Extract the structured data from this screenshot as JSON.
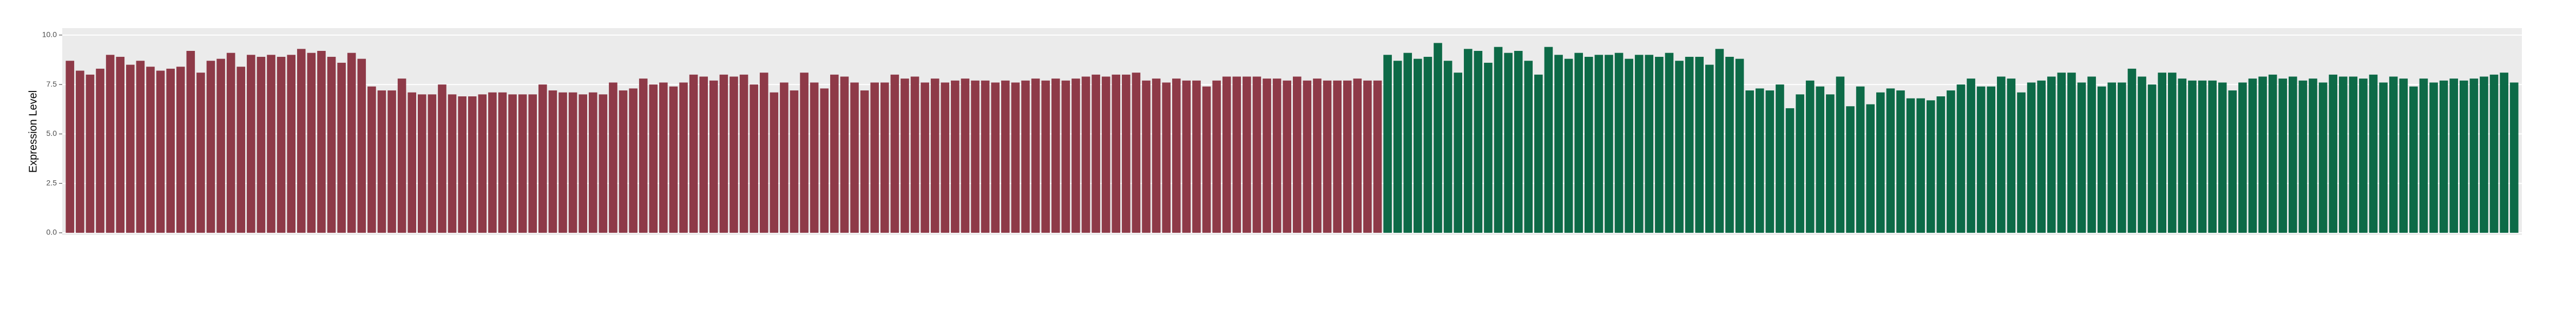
{
  "chart_data": {
    "type": "bar",
    "y_label": "Expression Level",
    "ylim": [
      0,
      10.35
    ],
    "yticks": [
      {
        "value": 0,
        "label": "0.0"
      },
      {
        "value": 2.5,
        "label": "2.5"
      },
      {
        "value": 5,
        "label": "5.0"
      },
      {
        "value": 7.5,
        "label": "7.5"
      },
      {
        "value": 10,
        "label": "10.0"
      }
    ],
    "grid": true,
    "series": [
      {
        "color": "#8e3a48",
        "values": [
          8.7,
          8.2,
          8.0,
          8.3,
          9.0,
          8.9,
          8.5,
          8.7,
          8.4,
          8.2,
          8.3,
          8.4,
          9.2,
          8.1,
          8.7,
          8.8,
          9.1,
          8.4,
          9.0,
          8.9,
          9.0,
          8.9,
          9.0,
          9.3,
          9.1,
          9.2,
          8.9,
          8.6,
          9.1,
          8.8,
          7.4,
          7.2,
          7.2,
          7.8,
          7.1,
          7.0,
          7.0,
          7.5,
          7.0,
          6.9,
          6.9,
          7.0,
          7.1,
          7.1,
          7.0,
          7.0,
          7.0,
          7.5,
          7.2,
          7.1,
          7.1,
          7.0,
          7.1,
          7.0,
          7.6,
          7.2,
          7.3,
          7.8,
          7.5,
          7.6,
          7.4,
          7.6,
          8.0,
          7.9,
          7.7,
          8.0,
          7.9,
          8.0,
          7.5,
          8.1,
          7.1,
          7.6,
          7.2,
          8.1,
          7.6,
          7.3,
          8.0,
          7.9,
          7.6,
          7.2,
          7.6,
          7.6,
          8.0,
          7.8,
          7.9,
          7.6,
          7.8,
          7.6,
          7.7,
          7.8,
          7.7,
          7.7,
          7.6,
          7.7,
          7.6,
          7.7,
          7.8,
          7.7,
          7.8,
          7.7,
          7.8,
          7.9,
          8.0,
          7.9,
          8.0,
          8.0,
          8.1,
          7.7,
          7.8,
          7.6,
          7.8,
          7.7,
          7.7,
          7.4,
          7.7,
          7.9,
          7.9,
          7.9,
          7.9,
          7.8,
          7.8,
          7.7,
          7.9,
          7.7,
          7.8,
          7.7,
          7.7,
          7.7,
          7.8,
          7.7,
          7.7
        ]
      },
      {
        "color": "#0d6a47",
        "values": [
          9.0,
          8.7,
          9.1,
          8.8,
          8.9,
          9.6,
          8.7,
          8.1,
          9.3,
          9.2,
          8.6,
          9.4,
          9.1,
          9.2,
          8.7,
          8.0,
          9.4,
          9.0,
          8.8,
          9.1,
          8.9,
          9.0,
          9.0,
          9.1,
          8.8,
          9.0,
          9.0,
          8.9,
          9.1,
          8.7,
          8.9,
          8.9,
          8.5,
          9.3,
          8.9,
          8.8,
          7.2,
          7.3,
          7.2,
          7.5,
          6.3,
          7.0,
          7.7,
          7.4,
          7.0,
          7.9,
          6.4,
          7.4,
          6.5,
          7.1,
          7.3,
          7.2,
          6.8,
          6.8,
          6.7,
          6.9,
          7.2,
          7.5,
          7.8,
          7.4,
          7.4,
          7.9,
          7.8,
          7.1,
          7.6,
          7.7,
          7.9,
          8.1,
          8.1,
          7.6,
          7.9,
          7.4,
          7.6,
          7.6,
          8.3,
          7.9,
          7.5,
          8.1,
          8.1,
          7.8,
          7.7,
          7.7,
          7.7,
          7.6,
          7.2,
          7.6,
          7.8,
          7.9,
          8.0,
          7.8,
          7.9,
          7.7,
          7.8,
          7.6,
          8.0,
          7.9,
          7.9,
          7.8,
          8.0,
          7.6,
          7.9,
          7.8,
          7.4,
          7.8,
          7.6,
          7.7,
          7.8,
          7.7,
          7.8,
          7.9,
          8.0,
          8.1,
          7.6
        ]
      }
    ]
  }
}
